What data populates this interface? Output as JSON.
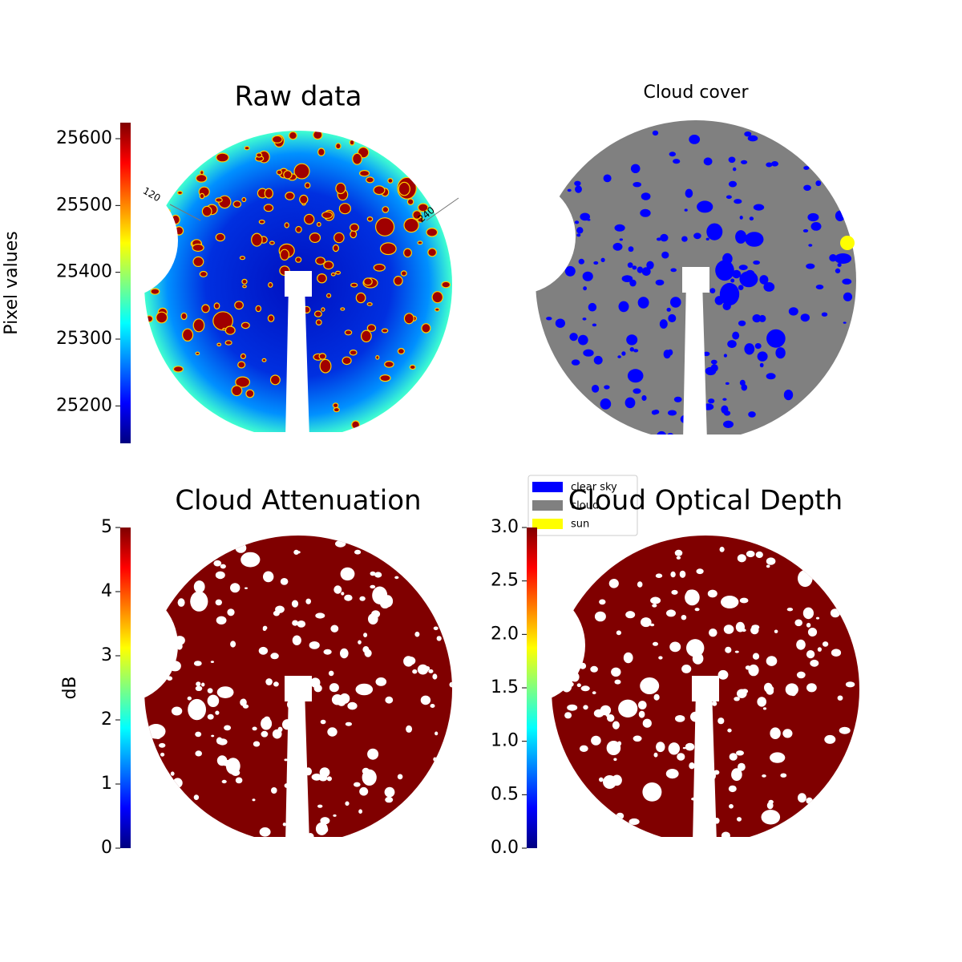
{
  "chart_data": [
    {
      "type": "image",
      "title": "Raw data",
      "cmap": "jet",
      "ylabel": "Pixel values",
      "ylim": [
        25144,
        25624
      ],
      "yticks": [
        25200,
        25300,
        25400,
        25500,
        25600
      ],
      "annotations": [
        "120",
        "240"
      ]
    },
    {
      "type": "image",
      "title": "Cloud cover",
      "series": [
        {
          "name": "clear sky",
          "color": "#0000ff"
        },
        {
          "name": "cloud",
          "color": "#808080"
        },
        {
          "name": "sun",
          "color": "#ffff00"
        }
      ]
    },
    {
      "type": "image",
      "title": "Cloud Attenuation",
      "cmap": "jet",
      "ylabel": "dB",
      "ylim": [
        0,
        5
      ],
      "yticks": [
        0,
        1,
        2,
        3,
        4,
        5
      ]
    },
    {
      "type": "image",
      "title": "Cloud Optical Depth",
      "cmap": "jet",
      "ylim": [
        0,
        3
      ],
      "yticks": [
        {
          "value": 0,
          "label": "0.0"
        },
        {
          "value": 0.5,
          "label": "0.5"
        },
        {
          "value": 1,
          "label": "1.0"
        },
        {
          "value": 1.5,
          "label": "1.5"
        },
        {
          "value": 2,
          "label": "2.0"
        },
        {
          "value": 2.5,
          "label": "2.5"
        },
        {
          "value": 3,
          "label": "3.0"
        }
      ]
    }
  ]
}
